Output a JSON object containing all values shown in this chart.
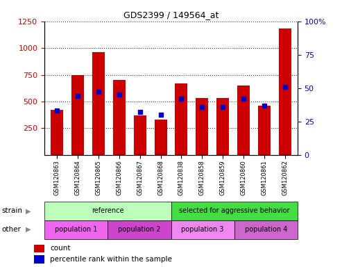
{
  "title": "GDS2399 / 149564_at",
  "samples": [
    "GSM120863",
    "GSM120864",
    "GSM120865",
    "GSM120866",
    "GSM120867",
    "GSM120868",
    "GSM120838",
    "GSM120858",
    "GSM120859",
    "GSM120860",
    "GSM120861",
    "GSM120862"
  ],
  "counts": [
    420,
    750,
    960,
    700,
    370,
    330,
    670,
    530,
    530,
    650,
    460,
    1180
  ],
  "percentiles": [
    33,
    44,
    47,
    45,
    32,
    30,
    42,
    36,
    36,
    42,
    37,
    51
  ],
  "ylim_left": [
    0,
    1250
  ],
  "ylim_right": [
    0,
    100
  ],
  "yticks_left": [
    250,
    500,
    750,
    1000,
    1250
  ],
  "yticks_right": [
    0,
    25,
    50,
    75,
    100
  ],
  "bar_color": "#cc0000",
  "dot_color": "#0000cc",
  "strain_groups": [
    {
      "label": "reference",
      "start": 0,
      "end": 6,
      "color": "#bbffbb"
    },
    {
      "label": "selected for aggressive behavior",
      "start": 6,
      "end": 12,
      "color": "#44dd44"
    }
  ],
  "other_groups": [
    {
      "label": "population 1",
      "start": 0,
      "end": 3,
      "color": "#ee66ee"
    },
    {
      "label": "population 2",
      "start": 3,
      "end": 6,
      "color": "#cc44cc"
    },
    {
      "label": "population 3",
      "start": 6,
      "end": 9,
      "color": "#ee88ee"
    },
    {
      "label": "population 4",
      "start": 9,
      "end": 12,
      "color": "#cc66cc"
    }
  ],
  "strain_label": "strain",
  "other_label": "other",
  "legend_count_label": "count",
  "legend_pct_label": "percentile rank within the sample",
  "tick_label_color_left": "#cc0000",
  "tick_label_color_right": "#0000cc",
  "plot_bg": "#ffffff",
  "fig_bg": "#ffffff"
}
